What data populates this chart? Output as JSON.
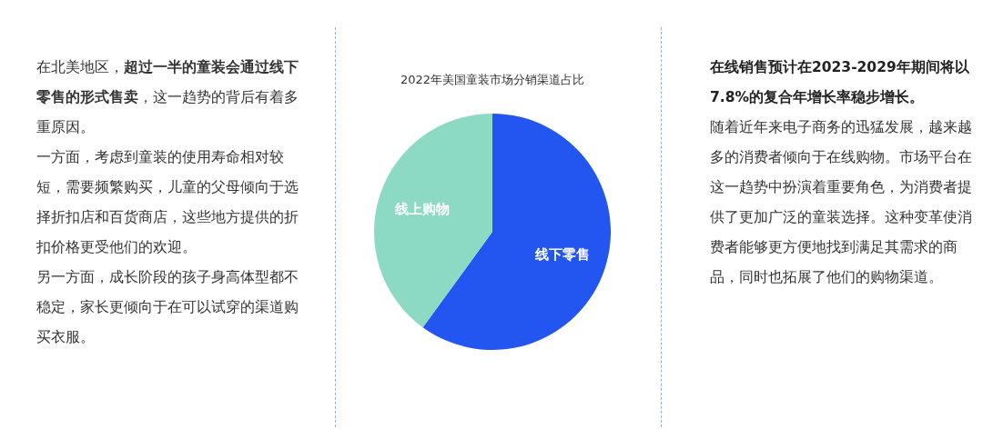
{
  "chart_data": [
    {
      "type": "other",
      "annotations": [
        "在北美地区，**超过一半的童装会通过线下零售的形式售卖**，这一趋势的背后有着多重原因。",
        "一方面，考虑到童装的使用寿命相对较短，需要频繁购买，儿童的父母倾向于选择折扣店和百货商店，这些地方提供的折扣价格更受他们的欢迎。",
        "另一方面，成长阶段的孩子身高体型都不稳定，家长更倾向于在可以试穿的渠道购买衣服。"
      ]
    },
    {
      "type": "pie",
      "title": "2022年美国童装市场分销渠道占比",
      "categories": [
        "线下零售",
        "线上购物"
      ],
      "values": [
        60,
        40
      ],
      "colors": [
        "#2356f0",
        "#8cd9c4"
      ]
    },
    {
      "type": "other",
      "title": "在线销售预计在2023-2029年期间将以7.8%的复合年增长率稳步增长。",
      "annotations": [
        "随着近年来电子商务的迅猛发展，越来越多的消费者倾向于在线购物。市场平台在这一趋势中扮演着重要角色，为消费者提供了更加广泛的童装选择。这种变革使消费者能够更方便地找到满足其需求的商品，同时也拓展了他们的购物渠道。"
      ]
    }
  ]
}
